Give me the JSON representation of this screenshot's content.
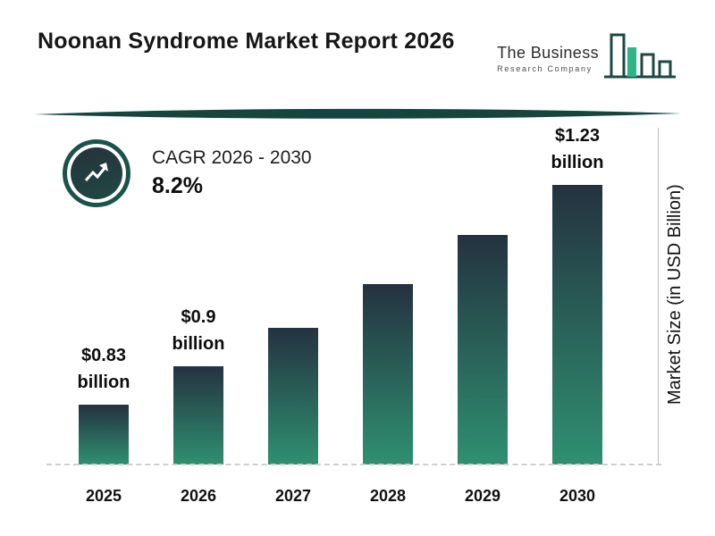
{
  "header": {
    "title": "Noonan Syndrome Market Report 2026",
    "logo": {
      "line1": "The Business",
      "line2": "Research Company"
    }
  },
  "cagr": {
    "label": "CAGR 2026 - 2030",
    "value": "8.2%"
  },
  "chart_data": {
    "type": "bar",
    "title": "Noonan Syndrome Market Report 2026",
    "ylabel": "Market Size (in USD Billion)",
    "unit": "USD Billion",
    "categories": [
      "2025",
      "2026",
      "2027",
      "2028",
      "2029",
      "2030"
    ],
    "values": [
      0.83,
      0.9,
      0.97,
      1.05,
      1.14,
      1.23
    ],
    "bar_labels": [
      {
        "line1": "$0.83",
        "line2": "billion"
      },
      {
        "line1": "$0.9",
        "line2": "billion"
      },
      null,
      null,
      null,
      {
        "line1": "$1.23",
        "line2": "billion"
      }
    ],
    "cagr_percent": 8.2,
    "ylim": [
      0.72,
      1.34
    ],
    "grid": false,
    "legend": "none",
    "axis_note": "bars not zero-based; only 2025, 2026 and 2030 carry data labels",
    "colors": {
      "bar_gradient_top": "#243240",
      "bar_gradient_bottom": "#2f9070",
      "accent_teal": "#1b534c",
      "divider_teal": "#16453f",
      "logo_green": "#2eb487"
    }
  }
}
